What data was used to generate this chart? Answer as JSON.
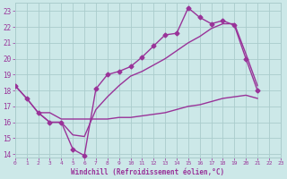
{
  "bg_color": "#cce8e8",
  "grid_color": "#aacccc",
  "line_color": "#993399",
  "marker": "D",
  "markersize": 2.5,
  "series1_x": [
    0,
    1,
    2,
    3,
    4,
    5,
    6,
    7,
    8,
    9,
    10,
    11,
    12,
    13,
    14,
    15,
    16,
    17,
    18,
    19,
    20,
    21
  ],
  "series1_y": [
    18.3,
    17.5,
    16.6,
    16.0,
    16.0,
    14.3,
    13.9,
    18.1,
    19.0,
    19.2,
    19.5,
    20.1,
    20.8,
    21.5,
    21.6,
    23.2,
    22.6,
    22.2,
    22.4,
    22.1,
    20.0,
    18.0
  ],
  "series2_x": [
    0,
    1,
    2,
    3,
    4,
    5,
    6,
    7,
    8,
    9,
    10,
    11,
    12,
    13,
    14,
    15,
    16,
    17,
    18,
    19,
    20,
    21
  ],
  "series2_y": [
    18.3,
    17.5,
    16.6,
    16.0,
    16.0,
    15.2,
    15.1,
    16.8,
    17.6,
    18.3,
    18.9,
    19.2,
    19.6,
    20.0,
    20.5,
    21.0,
    21.4,
    21.9,
    22.2,
    22.2,
    20.3,
    18.3
  ],
  "series3_x": [
    0,
    1,
    2,
    3,
    4,
    5,
    6,
    7,
    8,
    9,
    10,
    11,
    12,
    13,
    14,
    15,
    16,
    17,
    18,
    19,
    20,
    21,
    22,
    23
  ],
  "series3_y": [
    null,
    null,
    16.6,
    16.6,
    16.2,
    16.2,
    16.2,
    16.2,
    16.2,
    16.3,
    16.3,
    16.4,
    16.5,
    16.6,
    16.8,
    17.0,
    17.1,
    17.3,
    17.5,
    17.6,
    17.7,
    17.5,
    null,
    null
  ],
  "xlim": [
    0,
    23
  ],
  "ylim": [
    13.8,
    23.5
  ],
  "xticks": [
    0,
    1,
    2,
    3,
    4,
    5,
    6,
    7,
    8,
    9,
    10,
    11,
    12,
    13,
    14,
    15,
    16,
    17,
    18,
    19,
    20,
    21,
    22,
    23
  ],
  "yticks": [
    14,
    15,
    16,
    17,
    18,
    19,
    20,
    21,
    22,
    23
  ],
  "xlabel": "Windchill (Refroidissement éolien,°C)"
}
